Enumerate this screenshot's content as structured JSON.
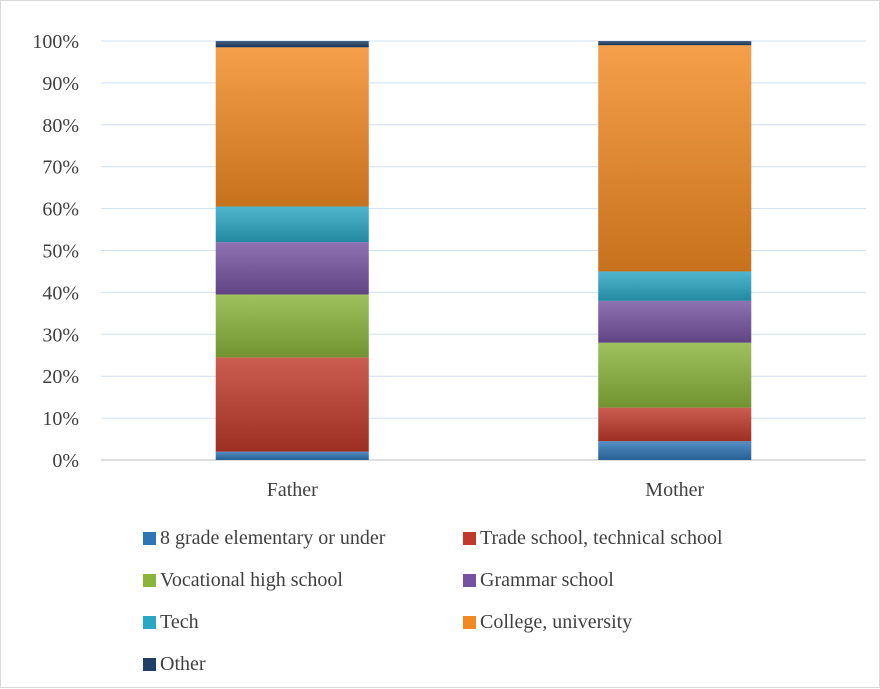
{
  "chart_data": {
    "type": "bar",
    "stacked": true,
    "percent": true,
    "categories": [
      "Father",
      "Mother"
    ],
    "series": [
      {
        "name": "8 grade elementary or under",
        "values": [
          2,
          4.5
        ],
        "color": "#2e75b6"
      },
      {
        "name": "Trade school, technical school",
        "values": [
          22.5,
          8
        ],
        "color": "#c0392b"
      },
      {
        "name": "Vocational high school",
        "values": [
          15,
          15.5
        ],
        "color": "#8ab43a"
      },
      {
        "name": "Grammar school",
        "values": [
          12.5,
          10
        ],
        "color": "#7553a0"
      },
      {
        "name": "Tech",
        "values": [
          8.5,
          7
        ],
        "color": "#2aa7c4"
      },
      {
        "name": "College, university",
        "values": [
          38,
          54
        ],
        "color": "#f28a22"
      },
      {
        "name": "Other",
        "values": [
          1.5,
          1
        ],
        "color": "#1f3f66"
      }
    ],
    "ylim": [
      0,
      100
    ],
    "yticks": [
      "0%",
      "10%",
      "20%",
      "30%",
      "40%",
      "50%",
      "60%",
      "70%",
      "80%",
      "90%",
      "100%"
    ],
    "grid": true,
    "legend": "bottom"
  }
}
